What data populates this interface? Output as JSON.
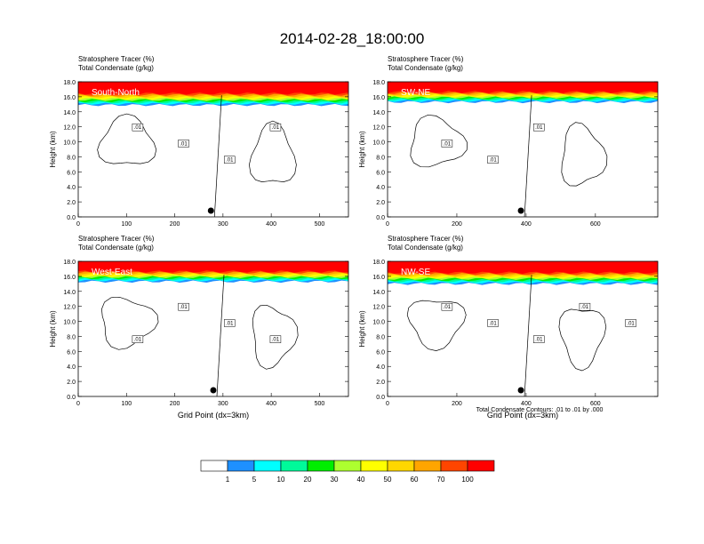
{
  "title": "2014-02-28_18:00:00",
  "colorbar": {
    "labels": [
      "1",
      "5",
      "10",
      "20",
      "30",
      "40",
      "50",
      "60",
      "70",
      "100"
    ],
    "colors": [
      "#ffffff",
      "#1e90ff",
      "#00ffff",
      "#00fa9a",
      "#00ee00",
      "#adff2f",
      "#ffff00",
      "#ffd700",
      "#ffa500",
      "#ff4500",
      "#ff0000"
    ]
  },
  "note": "Total Condensate Contours: .01 to .01 by .000",
  "chart_data": [
    {
      "type": "heatmap",
      "field1": "Stratosphere Tracer   (%)",
      "field2": "Total Condensate   (g/kg)",
      "section": "South-North",
      "ylabel": "Height (km)",
      "xlabel": "",
      "ylim": [
        0,
        18
      ],
      "xlim": [
        0,
        560
      ],
      "yticks": [
        "0.0",
        "2.0",
        "4.0",
        "6.0",
        "8.0",
        "10.0",
        "12.0",
        "14.0",
        "16.0",
        "18.0"
      ],
      "xticks": [
        0,
        100,
        200,
        300,
        400,
        500
      ],
      "contour_labels": [
        ".01",
        ".01",
        ".01",
        ".01"
      ],
      "tracer_base_km": 14.9,
      "marker_x": 275
    },
    {
      "type": "heatmap",
      "field1": "Stratosphere Tracer   (%)",
      "field2": "Total Condensate   (g/kg)",
      "section": "SW-NE",
      "ylabel": "Height (km)",
      "xlabel": "",
      "ylim": [
        0,
        18
      ],
      "xlim": [
        0,
        780
      ],
      "yticks": [
        "0.0",
        "2.0",
        "4.0",
        "6.0",
        "8.0",
        "10.0",
        "12.0",
        "14.0",
        "16.0",
        "18.0"
      ],
      "xticks": [
        0,
        200,
        400,
        600
      ],
      "contour_labels": [
        ".01",
        ".01",
        ".01"
      ],
      "tracer_base_km": 15.3,
      "marker_x": 385
    },
    {
      "type": "heatmap",
      "field1": "Stratosphere Tracer   (%)",
      "field2": "Total Condensate   (g/kg)",
      "section": "West-East",
      "ylabel": "Height (km)",
      "xlabel": "Grid Point (dx=3km)",
      "ylim": [
        0,
        18
      ],
      "xlim": [
        0,
        560
      ],
      "yticks": [
        "0.0",
        "2.0",
        "4.0",
        "6.0",
        "8.0",
        "10.0",
        "12.0",
        "14.0",
        "16.0",
        "18.0"
      ],
      "xticks": [
        0,
        100,
        200,
        300,
        400,
        500
      ],
      "contour_labels": [
        ".01",
        ".01",
        ".01",
        ".01"
      ],
      "tracer_base_km": 15.3,
      "marker_x": 280
    },
    {
      "type": "heatmap",
      "field1": "Stratosphere Tracer   (%)",
      "field2": "Total Condensate   (g/kg)",
      "section": "NW-SE",
      "ylabel": "Height (km)",
      "xlabel": "Grid Point (dx=3km)",
      "ylim": [
        0,
        18
      ],
      "xlim": [
        0,
        780
      ],
      "yticks": [
        "0.0",
        "2.0",
        "4.0",
        "6.0",
        "8.0",
        "10.0",
        "12.0",
        "14.0",
        "16.0",
        "18.0"
      ],
      "xticks": [
        0,
        200,
        400,
        600
      ],
      "contour_labels": [
        ".01",
        ".01",
        ".01",
        ".01",
        ".01"
      ],
      "tracer_base_km": 15.0,
      "marker_x": 385
    }
  ]
}
